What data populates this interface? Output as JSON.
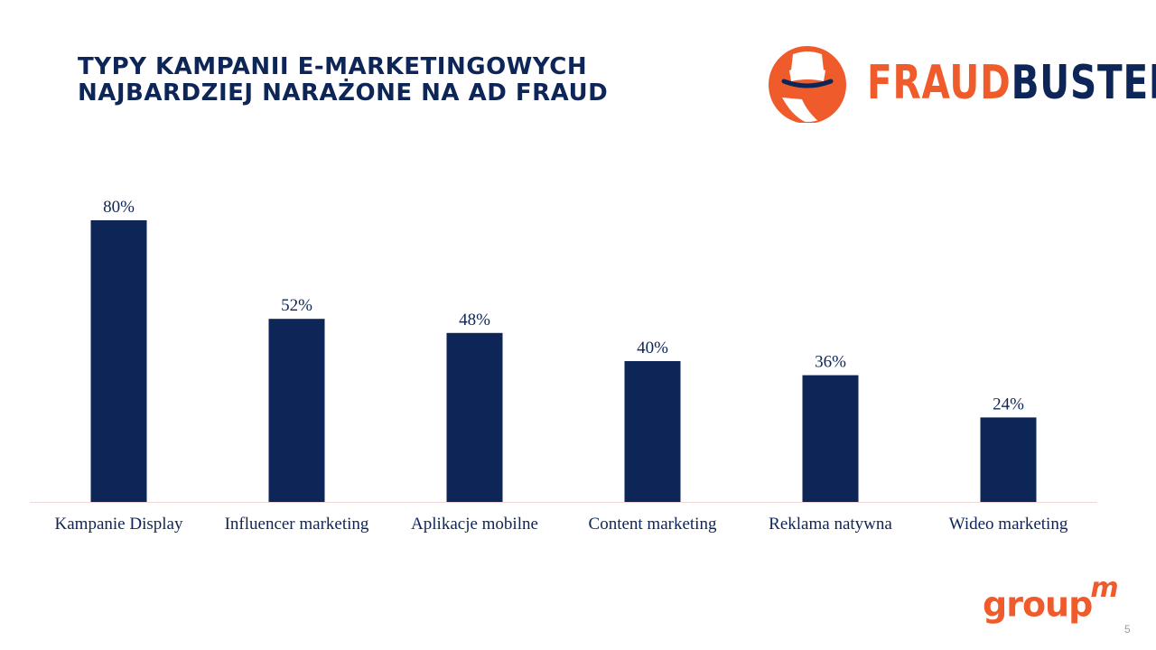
{
  "slide": {
    "title_line1": "TYPY KAMPANII E-MARKETINGOWYCH",
    "title_line2": "NAJBARDZIEJ NARAŻONE NA AD FRAUD",
    "logo_part1": "FRAUD",
    "logo_part2": "BUSTERS",
    "footer_logo": "group",
    "footer_logo_sup": "m",
    "page_number": "5"
  },
  "colors": {
    "bar": "#0d2657",
    "accent": "#ef5b2b",
    "text": "#0d2657"
  },
  "chart_data": {
    "type": "bar",
    "categories": [
      "Kampanie Display",
      "Influencer marketing",
      "Aplikacje mobilne",
      "Content marketing",
      "Reklama natywna",
      "Wideo marketing"
    ],
    "values": [
      80,
      52,
      48,
      40,
      36,
      24
    ],
    "data_labels": [
      "80%",
      "52%",
      "48%",
      "40%",
      "36%",
      "24%"
    ],
    "title": "",
    "xlabel": "",
    "ylabel": "",
    "ylim": [
      0,
      80
    ],
    "grid": false,
    "legend": "none"
  }
}
